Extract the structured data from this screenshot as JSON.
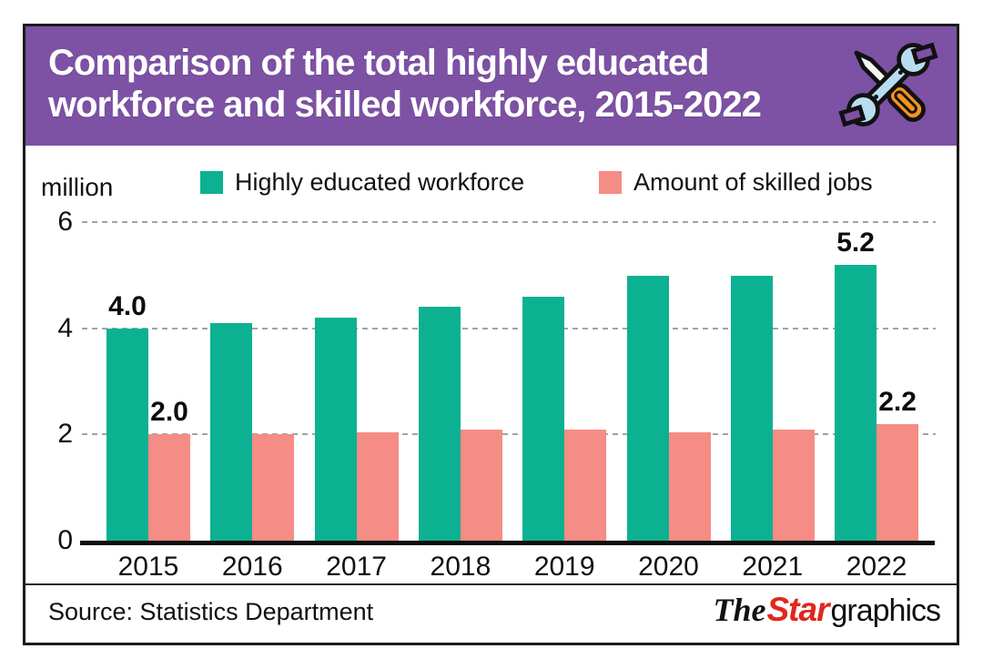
{
  "header": {
    "title_line1": "Comparison of the total highly educated",
    "title_line2": "workforce and skilled workforce, 2015-2022"
  },
  "colors": {
    "header_bg": "#7d51a4",
    "highly_educated_green": "#0cb191",
    "skilled_jobs_pink": "#f58c85",
    "star_logo_red": "#e0271e",
    "gridline_gray": "#a3a3a3",
    "axis_black": "#0d0d0d"
  },
  "icons": {
    "header_icon": "crossed-wrench-and-screwdriver-icon"
  },
  "legend": {
    "items": [
      {
        "label": "Highly educated workforce",
        "color": "#0cb191"
      },
      {
        "label": "Amount of skilled jobs",
        "color": "#f58c85"
      }
    ]
  },
  "chart_data": {
    "type": "bar",
    "title": "Comparison of the total highly educated workforce and skilled workforce, 2015-2022",
    "unit_label": "million",
    "categories": [
      "2015",
      "2016",
      "2017",
      "2018",
      "2019",
      "2020",
      "2021",
      "2022"
    ],
    "series": [
      {
        "name": "Highly educated workforce",
        "color": "#0cb191",
        "values": [
          4.0,
          4.1,
          4.2,
          4.4,
          4.6,
          5.0,
          5.0,
          5.2
        ]
      },
      {
        "name": "Amount of skilled jobs",
        "color": "#f58c85",
        "values": [
          2.0,
          2.0,
          2.05,
          2.1,
          2.1,
          2.05,
          2.1,
          2.2
        ]
      }
    ],
    "value_labels": [
      {
        "category_index": 0,
        "series_index": 0,
        "text": "4.0"
      },
      {
        "category_index": 0,
        "series_index": 1,
        "text": "2.0"
      },
      {
        "category_index": 7,
        "series_index": 0,
        "text": "5.2"
      },
      {
        "category_index": 7,
        "series_index": 1,
        "text": "2.2"
      }
    ],
    "yticks": [
      0,
      2,
      4,
      6
    ],
    "ylim": [
      0,
      6.2
    ],
    "grid": "horizontal-dashed",
    "legend_position": "top"
  },
  "footer": {
    "source": "Source: Statistics Department",
    "credit": {
      "the": "The",
      "star": "Star",
      "graphics": "graphics"
    }
  }
}
